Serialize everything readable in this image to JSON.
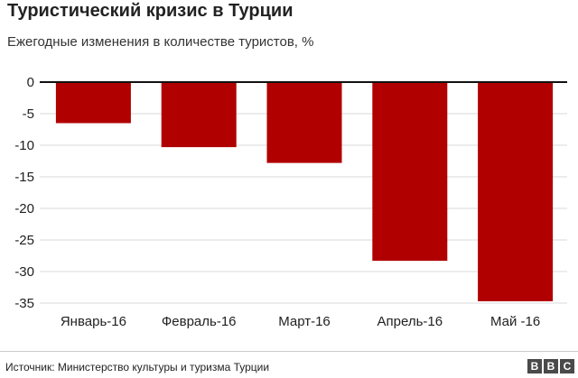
{
  "header": {
    "title": "Туристический кризис в Турции",
    "subtitle": "Ежегодные изменения в количестве туристов, %"
  },
  "footer": {
    "source": "Источник: Министерство культуры и туризма Турции",
    "logo_letters": [
      "B",
      "B",
      "C"
    ]
  },
  "colors": {
    "bar": "#b00000",
    "zero_line": "#111111",
    "grid": "#d9d9d9",
    "text": "#222222"
  },
  "chart_data": {
    "type": "bar",
    "categories": [
      "Январь-16",
      "Февраль-16",
      "Март-16",
      "Апрель-16",
      "Май -16"
    ],
    "values": [
      -6.5,
      -10.3,
      -12.8,
      -28.3,
      -34.7
    ],
    "yticks": [
      0,
      -5,
      -10,
      -15,
      -20,
      -25,
      -30,
      -35
    ],
    "ylim": [
      -35,
      0
    ],
    "grid": true
  }
}
